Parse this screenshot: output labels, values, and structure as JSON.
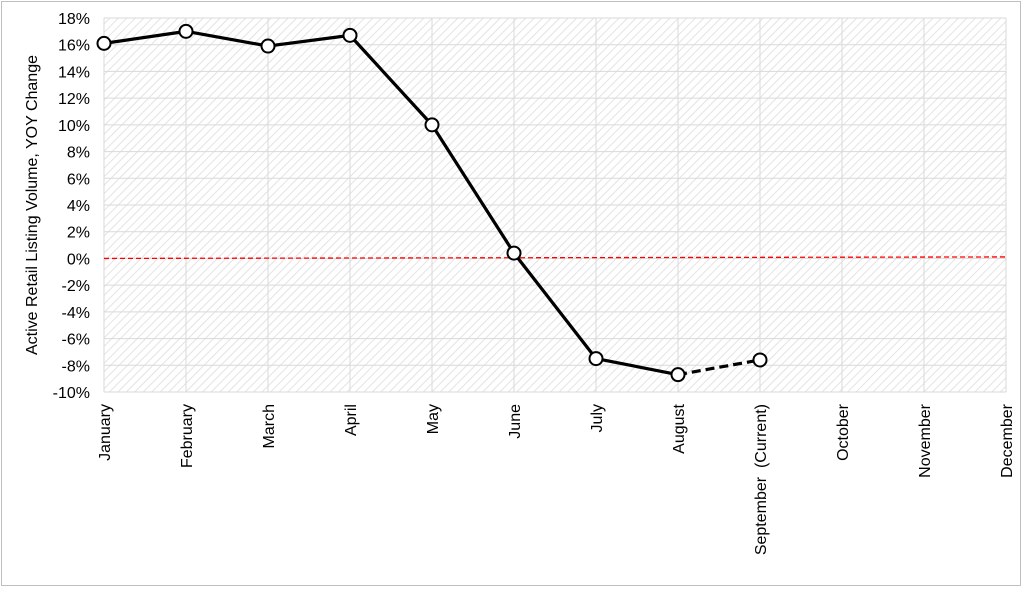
{
  "chart_data": {
    "type": "line",
    "title": "",
    "xlabel": "",
    "ylabel": "Active Retail Listing Volume, YOY Change",
    "categories": [
      "January",
      "February",
      "March",
      "April",
      "May",
      "June",
      "July",
      "August",
      "September  (Current)",
      "October",
      "November",
      "December"
    ],
    "series": [
      {
        "values": [
          16.1,
          17.0,
          15.9,
          16.7,
          10.0,
          0.4,
          -7.5,
          -8.7,
          -7.6,
          null,
          null,
          null
        ],
        "line_style": "solid",
        "dashed_from_index": 7,
        "color": "#000000",
        "marker": "open-circle"
      }
    ],
    "reference_line": {
      "y": 0,
      "color": "#ff0000",
      "style": "dashed"
    },
    "ylim": [
      -10,
      18
    ],
    "y_ticks": [
      "18%",
      "16%",
      "14%",
      "12%",
      "10%",
      "8%",
      "6%",
      "4%",
      "2%",
      "0%",
      "-2%",
      "-4%",
      "-6%",
      "-8%",
      "-10%"
    ],
    "y_tick_values": [
      18,
      16,
      14,
      12,
      10,
      8,
      6,
      4,
      2,
      0,
      -2,
      -4,
      -6,
      -8,
      -10
    ],
    "grid": true,
    "legend": "none",
    "colors": {
      "plot_background": "#ffffff",
      "gridline": "#d9d9d9",
      "hatch": "#e6e6e6",
      "line": "#000000",
      "zero_line": "#ff0000"
    }
  }
}
